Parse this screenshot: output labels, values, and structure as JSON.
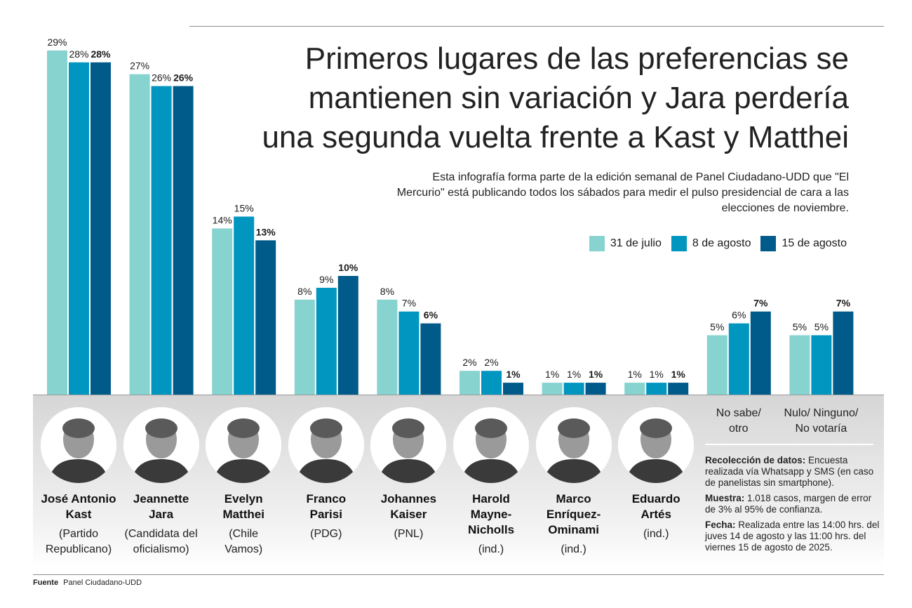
{
  "title": "Primeros lugares de las preferencias se mantienen sin variación y Jara perdería una segunda vuelta frente a Kast y Matthei",
  "subtitle": "Esta infografía forma parte de la edición semanal de Panel Ciudadano-UDD que \"El Mercurio\" está publicando todos los sábados para medir el pulso presidencial de cara a las elecciones de noviembre.",
  "colors": {
    "series1": "#86d3cf",
    "series2": "#0096c0",
    "series3": "#005b8a"
  },
  "chart_data": {
    "type": "bar",
    "title": "Primeros lugares de las preferencias se mantienen sin variación y Jara perdería una segunda vuelta frente a Kast y Matthei",
    "categories": [
      "José Antonio Kast",
      "Jeannette Jara",
      "Evelyn Matthei",
      "Franco Parisi",
      "Johannes Kaiser",
      "Harold Mayne-Nicholls",
      "Marco Enríquez-Ominami",
      "Eduardo Artés",
      "No sabe/ otro",
      "Nulo/ Ninguno/ No votaría"
    ],
    "series": [
      {
        "name": "31 de julio",
        "values": [
          29,
          27,
          14,
          8,
          8,
          2,
          1,
          1,
          5,
          5
        ]
      },
      {
        "name": "8 de agosto",
        "values": [
          28,
          26,
          15,
          9,
          7,
          2,
          1,
          1,
          6,
          5
        ]
      },
      {
        "name": "15 de agosto",
        "values": [
          28,
          26,
          13,
          10,
          6,
          1,
          1,
          1,
          7,
          7
        ]
      }
    ],
    "value_suffix": "%",
    "ylim": [
      0,
      30
    ],
    "grid": false,
    "legend": "top-right"
  },
  "candidates": [
    {
      "name_lines": [
        "José Antonio",
        "Kast"
      ],
      "party_lines": [
        "(Partido",
        "Republicano)"
      ]
    },
    {
      "name_lines": [
        "Jeannette",
        "Jara"
      ],
      "party_lines": [
        "(Candidata del",
        "oficialismo)"
      ]
    },
    {
      "name_lines": [
        "Evelyn",
        "Matthei"
      ],
      "party_lines": [
        "(Chile",
        "Vamos)"
      ]
    },
    {
      "name_lines": [
        "Franco",
        "Parisi"
      ],
      "party_lines": [
        "(PDG)"
      ]
    },
    {
      "name_lines": [
        "Johannes",
        "Kaiser"
      ],
      "party_lines": [
        "(PNL)"
      ]
    },
    {
      "name_lines": [
        "Harold",
        "Mayne-",
        "Nicholls"
      ],
      "party_lines": [
        "(ind.)"
      ]
    },
    {
      "name_lines": [
        "Marco",
        "Enríquez-",
        "Ominami"
      ],
      "party_lines": [
        "(ind.)"
      ]
    },
    {
      "name_lines": [
        "Eduardo",
        "Artés"
      ],
      "party_lines": [
        "(ind.)"
      ]
    }
  ],
  "extra_labels": [
    {
      "lines": [
        "No sabe/",
        "otro"
      ]
    },
    {
      "lines": [
        "Nulo/ Ninguno/",
        "No votaría"
      ]
    }
  ],
  "notes": [
    {
      "label": "Recolección de datos:",
      "text": " Encuesta realizada vía Whatsapp y SMS (en caso de panelistas sin smartphone)."
    },
    {
      "label": "Muestra:",
      "text": " 1.018 casos, margen de error de 3% al 95% de confianza."
    },
    {
      "label": "Fecha:",
      "text": " Realizada entre las 14:00 hrs. del juves 14 de agosto y las 11:00 hrs. del viernes 15 de agosto de 2025."
    }
  ],
  "source": {
    "label": "Fuente",
    "text": "Panel Ciudadano-UDD"
  }
}
